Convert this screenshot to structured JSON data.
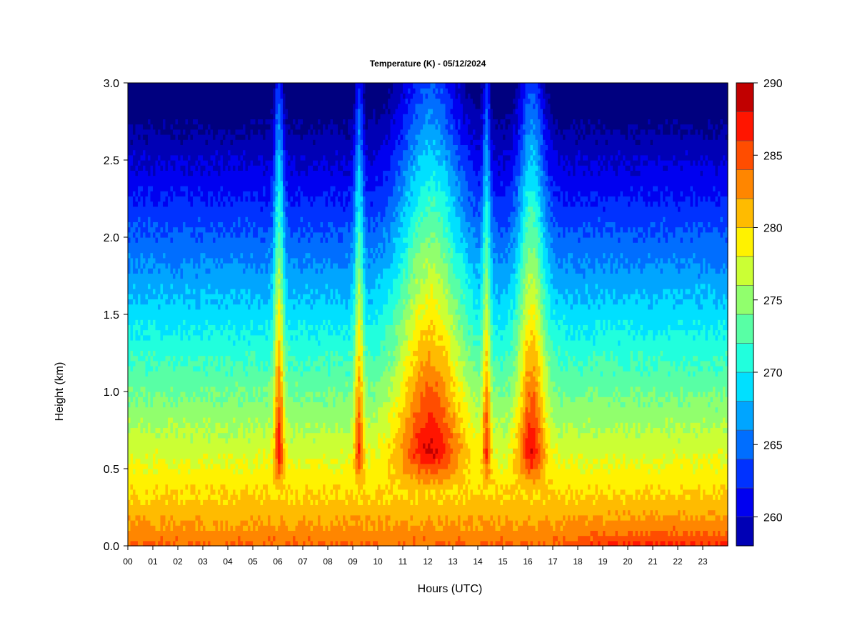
{
  "chart_data": {
    "type": "heatmap",
    "title": "Temperature (K) - 05/12/2024",
    "xlabel": "Hours (UTC)",
    "ylabel": "Height (km)",
    "xlim": [
      0,
      24
    ],
    "ylim": [
      0,
      3.0
    ],
    "x_ticks": [
      "00",
      "01",
      "02",
      "03",
      "04",
      "05",
      "06",
      "07",
      "08",
      "09",
      "10",
      "11",
      "12",
      "13",
      "14",
      "15",
      "16",
      "17",
      "18",
      "19",
      "20",
      "21",
      "22",
      "23"
    ],
    "y_ticks": [
      "0.0",
      "0.5",
      "1.0",
      "1.5",
      "2.0",
      "2.5",
      "3.0"
    ],
    "colorbar": {
      "min": 258,
      "max": 290,
      "levels": [
        258,
        260,
        262,
        264,
        266,
        268,
        270,
        272,
        274,
        276,
        278,
        280,
        282,
        284,
        286,
        288,
        290
      ],
      "tick_values": [
        260,
        265,
        270,
        275,
        280,
        285,
        290
      ],
      "tick_labels": [
        "260",
        "265",
        "270",
        "275",
        "280",
        "285",
        "290"
      ],
      "colors": [
        "#00007f",
        "#0000b5",
        "#0000f0",
        "#0032ff",
        "#006eff",
        "#00a5ff",
        "#00e0ff",
        "#21ffdd",
        "#58ffa5",
        "#91ff6d",
        "#cbff34",
        "#fff200",
        "#ffbb00",
        "#ff8600",
        "#ff4d00",
        "#ff1500",
        "#c10000",
        "#800000"
      ]
    },
    "field": {
      "description_units": "temperature in K as function of hour (UTC) and height (km)",
      "surface_base_K": 283,
      "lapse_K_per_km": 9.3,
      "warm_plumes": [
        {
          "center_hour": 6.05,
          "half_width_h": 0.22,
          "top_km": 3.0,
          "anomaly_K": 10.5
        },
        {
          "center_hour": 9.25,
          "half_width_h": 0.2,
          "top_km": 3.0,
          "anomaly_K": 9.5
        },
        {
          "center_hour": 12.1,
          "half_width_h": 1.45,
          "top_km": 3.0,
          "anomaly_K": 11.5
        },
        {
          "center_hour": 14.35,
          "half_width_h": 0.18,
          "top_km": 3.0,
          "anomaly_K": 8.5
        },
        {
          "center_hour": 16.15,
          "half_width_h": 0.6,
          "top_km": 3.0,
          "anomaly_K": 11.0
        }
      ]
    }
  }
}
